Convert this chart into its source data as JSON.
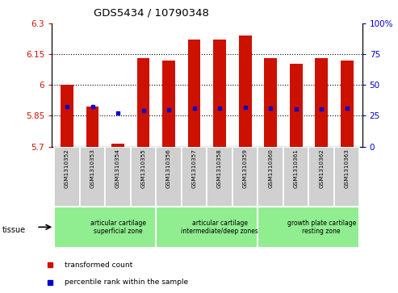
{
  "title": "GDS5434 / 10790348",
  "samples": [
    "GSM1310352",
    "GSM1310353",
    "GSM1310354",
    "GSM1310355",
    "GSM1310356",
    "GSM1310357",
    "GSM1310358",
    "GSM1310359",
    "GSM1310360",
    "GSM1310361",
    "GSM1310362",
    "GSM1310363"
  ],
  "red_values": [
    6.0,
    5.895,
    5.715,
    6.13,
    6.12,
    6.22,
    6.22,
    6.24,
    6.13,
    6.105,
    6.13,
    6.12
  ],
  "blue_values": [
    5.895,
    5.895,
    5.865,
    5.875,
    5.878,
    5.888,
    5.887,
    5.89,
    5.888,
    5.882,
    5.882,
    5.887
  ],
  "ymin": 5.7,
  "ymax": 6.3,
  "y2min": 0,
  "y2max": 100,
  "yticks": [
    5.7,
    5.85,
    6.0,
    6.15,
    6.3
  ],
  "y2ticks": [
    0,
    25,
    50,
    75,
    100
  ],
  "ytick_labels": [
    "5.7",
    "5.85",
    "6",
    "6.15",
    "6.3"
  ],
  "y2tick_labels": [
    "0",
    "25",
    "50",
    "75",
    "100%"
  ],
  "grid_lines": [
    5.85,
    6.0,
    6.15
  ],
  "groups": [
    {
      "label": "articular cartilage\nsuperficial zone",
      "start": 0,
      "end": 4
    },
    {
      "label": "articular cartilage\nintermediate/deep zones",
      "start": 4,
      "end": 8
    },
    {
      "label": "growth plate cartilage\nresting zone",
      "start": 8,
      "end": 12
    }
  ],
  "bar_color": "#cc1100",
  "blue_color": "#0000cc",
  "background_color": "#ffffff",
  "tick_area_color": "#d0d0d0",
  "green_color": "#90EE90",
  "tissue_label": "tissue",
  "legend_red": "transformed count",
  "legend_blue": "percentile rank within the sample",
  "bar_width": 0.5
}
